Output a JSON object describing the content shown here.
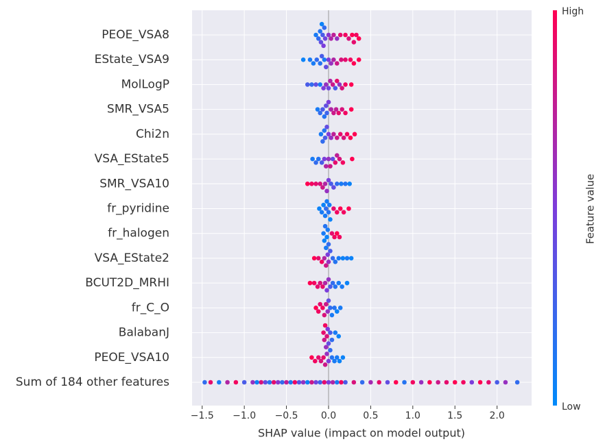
{
  "chart_data": {
    "type": "beeswarm",
    "xlabel": "SHAP value (impact on model output)",
    "colorbar_label": "Feature value",
    "colorbar_high": "High",
    "colorbar_low": "Low",
    "color_low": "#008bfb",
    "color_mid": "#7c3ddb",
    "color_high": "#ff0052",
    "grid": true,
    "xlim": [
      -1.62,
      2.41
    ],
    "xticks": [
      {
        "value": -1.5,
        "label": "−1.5"
      },
      {
        "value": -1,
        "label": "−1.0"
      },
      {
        "value": -0.5,
        "label": "−0.5"
      },
      {
        "value": 0,
        "label": "0.0"
      },
      0.5,
      {
        "value": 1,
        "label": "1.0"
      },
      1.5,
      {
        "value": 2,
        "label": "2.0"
      }
    ],
    "series": [
      {
        "name": "PEOE_VSA8",
        "values": [
          -0.15,
          -0.12,
          -0.1,
          -0.09,
          -0.08,
          -0.07,
          -0.06,
          -0.05,
          -0.04,
          0.0,
          0.03,
          0.06,
          0.1,
          0.14,
          0.2,
          0.24,
          0.28,
          0.3,
          0.33,
          0.36
        ],
        "feature_values": [
          0.1,
          0.2,
          0.15,
          0.4,
          0.05,
          0.3,
          0.5,
          0.2,
          0.45,
          0.55,
          0.7,
          0.75,
          0.6,
          0.9,
          0.95,
          0.85,
          1,
          0.9,
          0.95,
          1
        ]
      },
      {
        "name": "EState_VSA9",
        "values": [
          -0.3,
          -0.22,
          -0.18,
          -0.14,
          -0.1,
          -0.08,
          -0.05,
          -0.03,
          0.0,
          0.03,
          0.06,
          0.1,
          0.15,
          0.2,
          0.26,
          0.3,
          0.36
        ],
        "feature_values": [
          0.05,
          0.1,
          0.1,
          0.2,
          0.15,
          0.3,
          0.1,
          0.4,
          0.5,
          0.6,
          0.7,
          0.8,
          0.85,
          0.9,
          0.95,
          1,
          1
        ]
      },
      {
        "name": "MolLogP",
        "values": [
          -0.25,
          -0.2,
          -0.15,
          -0.1,
          -0.06,
          -0.03,
          0.0,
          0.02,
          0.05,
          0.08,
          0.1,
          0.13,
          0.16,
          0.2,
          0.27
        ],
        "feature_values": [
          0.3,
          0.2,
          0.4,
          0.1,
          0.5,
          0.6,
          0.45,
          0.7,
          0.8,
          0.3,
          0.9,
          0.6,
          0.85,
          0.95,
          1
        ]
      },
      {
        "name": "SMR_VSA5",
        "values": [
          -0.13,
          -0.1,
          -0.07,
          -0.05,
          -0.03,
          -0.02,
          0.0,
          0.03,
          0.06,
          0.09,
          0.12,
          0.16,
          0.2,
          0.27
        ],
        "feature_values": [
          0.1,
          0.2,
          0.3,
          0.15,
          0.4,
          0.25,
          0.5,
          0.7,
          0.8,
          0.75,
          0.9,
          0.85,
          0.95,
          1
        ]
      },
      {
        "name": "Chi2n",
        "values": [
          -0.09,
          -0.07,
          -0.05,
          -0.04,
          -0.02,
          0.0,
          0.03,
          0.06,
          0.1,
          0.14,
          0.18,
          0.22,
          0.26,
          0.31
        ],
        "feature_values": [
          0.1,
          0.2,
          0.15,
          0.3,
          0.4,
          0.5,
          0.6,
          0.75,
          0.8,
          0.9,
          0.85,
          0.95,
          1,
          1
        ]
      },
      {
        "name": "VSA_EState5",
        "values": [
          -0.19,
          -0.15,
          -0.12,
          -0.08,
          -0.05,
          -0.03,
          0.0,
          0.02,
          0.05,
          0.08,
          0.1,
          0.13,
          0.17,
          0.28
        ],
        "feature_values": [
          0.1,
          0.2,
          0.15,
          0.3,
          0.5,
          0.7,
          0.6,
          0.8,
          0.4,
          0.9,
          0.75,
          0.85,
          0.95,
          1
        ]
      },
      {
        "name": "SMR_VSA10",
        "values": [
          -0.25,
          -0.2,
          -0.15,
          -0.1,
          -0.07,
          -0.04,
          -0.02,
          0.0,
          0.03,
          0.06,
          0.1,
          0.15,
          0.2,
          0.25
        ],
        "feature_values": [
          1,
          0.95,
          0.9,
          0.85,
          0.8,
          0.7,
          0.6,
          0.5,
          0.3,
          0.4,
          0.2,
          0.1,
          0.15,
          0.05
        ]
      },
      {
        "name": "fr_pyridine",
        "values": [
          -0.11,
          -0.08,
          -0.06,
          -0.04,
          -0.03,
          -0.02,
          0.0,
          0.01,
          0.02,
          0.06,
          0.1,
          0.14,
          0.18,
          0.24
        ],
        "feature_values": [
          0.05,
          0.1,
          0.05,
          0.1,
          0.2,
          0.1,
          0.15,
          0.1,
          0.05,
          0.9,
          0.95,
          1,
          0.95,
          1
        ]
      },
      {
        "name": "fr_halogen",
        "values": [
          -0.06,
          -0.05,
          -0.04,
          -0.03,
          -0.02,
          -0.01,
          0.0,
          0.04,
          0.07,
          0.1,
          0.13
        ],
        "feature_values": [
          0.1,
          0.05,
          0.15,
          0.1,
          0.05,
          0.1,
          0.2,
          0.9,
          0.95,
          1,
          0.95
        ]
      },
      {
        "name": "VSA_EState2",
        "values": [
          -0.17,
          -0.12,
          -0.08,
          -0.05,
          -0.03,
          -0.01,
          0.0,
          0.02,
          0.05,
          0.08,
          0.12,
          0.17,
          0.22,
          0.27
        ],
        "feature_values": [
          1,
          0.9,
          0.95,
          0.7,
          0.8,
          0.5,
          0.6,
          0.3,
          0.2,
          0.15,
          0.1,
          0.05,
          0.1,
          0.05
        ]
      },
      {
        "name": "BCUT2D_MRHI",
        "values": [
          -0.22,
          -0.17,
          -0.13,
          -0.1,
          -0.07,
          -0.04,
          -0.02,
          0.0,
          0.02,
          0.05,
          0.08,
          0.12,
          0.16,
          0.22
        ],
        "feature_values": [
          1,
          0.95,
          0.9,
          0.85,
          0.9,
          0.7,
          0.5,
          0.6,
          0.3,
          0.2,
          0.15,
          0.1,
          0.1,
          0.05
        ]
      },
      {
        "name": "fr_C_O",
        "values": [
          -0.15,
          -0.12,
          -0.1,
          -0.07,
          -0.05,
          -0.03,
          -0.01,
          0.0,
          0.02,
          0.04,
          0.07,
          0.1,
          0.14
        ],
        "feature_values": [
          1,
          0.95,
          0.9,
          0.95,
          0.85,
          0.8,
          0.6,
          0.4,
          0.2,
          0.1,
          0.15,
          0.05,
          0.1
        ]
      },
      {
        "name": "BalabanJ",
        "values": [
          -0.06,
          -0.05,
          -0.04,
          -0.03,
          -0.02,
          -0.01,
          0.0,
          0.02,
          0.04,
          0.08,
          0.12
        ],
        "feature_values": [
          0.9,
          0.8,
          0.95,
          0.6,
          0.85,
          0.5,
          0.4,
          0.3,
          0.2,
          0.1,
          0.05
        ]
      },
      {
        "name": "PEOE_VSA10",
        "values": [
          -0.2,
          -0.16,
          -0.12,
          -0.09,
          -0.06,
          -0.04,
          -0.02,
          0.0,
          0.02,
          0.04,
          0.07,
          0.1,
          0.13,
          0.17
        ],
        "feature_values": [
          1,
          0.95,
          0.9,
          0.85,
          0.9,
          0.8,
          0.6,
          0.5,
          0.2,
          0.15,
          0.1,
          0.1,
          0.05,
          0.05
        ]
      },
      {
        "name": "Sum of 184 other features",
        "values": [
          -1.47,
          -1.4,
          -1.3,
          -1.2,
          -1.1,
          -1.0,
          -0.9,
          -0.85,
          -0.8,
          -0.75,
          -0.7,
          -0.65,
          -0.6,
          -0.55,
          -0.5,
          -0.45,
          -0.4,
          -0.35,
          -0.3,
          -0.25,
          -0.2,
          -0.15,
          -0.1,
          -0.05,
          0.0,
          0.05,
          0.1,
          0.15,
          0.2,
          0.3,
          0.4,
          0.5,
          0.6,
          0.7,
          0.8,
          0.9,
          1.0,
          1.1,
          1.2,
          1.3,
          1.4,
          1.5,
          1.6,
          1.7,
          1.8,
          1.9,
          2.0,
          2.1,
          2.24
        ],
        "feature_values": [
          0.2,
          0.9,
          0.1,
          0.7,
          0.95,
          0.3,
          0.6,
          0.05,
          0.85,
          0.4,
          0.15,
          0.9,
          0.55,
          0.2,
          0.75,
          0.1,
          0.95,
          0.35,
          0.6,
          0.05,
          0.8,
          0.45,
          0.25,
          0.9,
          0.5,
          0.7,
          0.1,
          0.95,
          0.3,
          0.85,
          0.2,
          0.65,
          0.9,
          0.4,
          1,
          0.15,
          0.95,
          0.6,
          1,
          0.8,
          0.9,
          1,
          0.95,
          0.5,
          1,
          0.9,
          0.3,
          0.6,
          0.2
        ]
      }
    ]
  }
}
